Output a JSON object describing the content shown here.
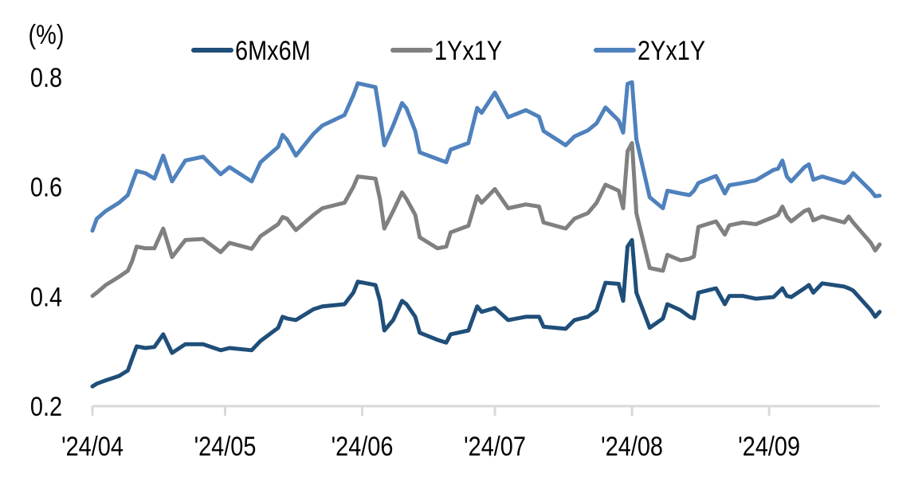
{
  "chart_data": {
    "type": "line",
    "unit_label": "(%)",
    "xlabel": "",
    "ylabel": "",
    "ylim": [
      0.2,
      0.8
    ],
    "yticks": [
      "0.2",
      "0.4",
      "0.6",
      "0.8"
    ],
    "xticks": [
      {
        "date": "2024-04-01",
        "label": "'24/04"
      },
      {
        "date": "2024-05-01",
        "label": "'24/05"
      },
      {
        "date": "2024-06-01",
        "label": "'24/06"
      },
      {
        "date": "2024-07-01",
        "label": "'24/07"
      },
      {
        "date": "2024-08-01",
        "label": "'24/08"
      },
      {
        "date": "2024-09-01",
        "label": "'24/09"
      }
    ],
    "grid": false,
    "legend_position": "top",
    "x": [
      "2024-04-01",
      "2024-04-02",
      "2024-04-04",
      "2024-04-07",
      "2024-04-09",
      "2024-04-10",
      "2024-04-11",
      "2024-04-13",
      "2024-04-15",
      "2024-04-17",
      "2024-04-19",
      "2024-04-22",
      "2024-04-26",
      "2024-04-30",
      "2024-05-02",
      "2024-05-07",
      "2024-05-09",
      "2024-05-13",
      "2024-05-14",
      "2024-05-15",
      "2024-05-17",
      "2024-05-21",
      "2024-05-23",
      "2024-05-28",
      "2024-05-30",
      "2024-05-31",
      "2024-06-04",
      "2024-06-05",
      "2024-06-06",
      "2024-06-08",
      "2024-06-10",
      "2024-06-11",
      "2024-06-13",
      "2024-06-14",
      "2024-06-18",
      "2024-06-20",
      "2024-06-21",
      "2024-06-25",
      "2024-06-27",
      "2024-06-28",
      "2024-07-01",
      "2024-07-04",
      "2024-07-08",
      "2024-07-11",
      "2024-07-12",
      "2024-07-17",
      "2024-07-19",
      "2024-07-22",
      "2024-07-24",
      "2024-07-26",
      "2024-07-29",
      "2024-07-30",
      "2024-07-31",
      "2024-08-01",
      "2024-08-02",
      "2024-08-05",
      "2024-08-08",
      "2024-08-09",
      "2024-08-12",
      "2024-08-14",
      "2024-08-15",
      "2024-08-16",
      "2024-08-20",
      "2024-08-22",
      "2024-08-23",
      "2024-08-26",
      "2024-08-29",
      "2024-09-02",
      "2024-09-03",
      "2024-09-04",
      "2024-09-05",
      "2024-09-06",
      "2024-09-09",
      "2024-09-10",
      "2024-09-11",
      "2024-09-13",
      "2024-09-18",
      "2024-09-19",
      "2024-09-20",
      "2024-09-24",
      "2024-09-25",
      "2024-09-26"
    ],
    "series": [
      {
        "name": "6Mx6M",
        "color": "#1f4e79",
        "values": [
          0.236,
          0.241,
          0.247,
          0.255,
          0.265,
          0.287,
          0.309,
          0.306,
          0.308,
          0.331,
          0.297,
          0.313,
          0.313,
          0.302,
          0.306,
          0.302,
          0.319,
          0.343,
          0.363,
          0.36,
          0.357,
          0.377,
          0.382,
          0.386,
          0.407,
          0.427,
          0.421,
          0.392,
          0.338,
          0.357,
          0.392,
          0.386,
          0.363,
          0.334,
          0.321,
          0.316,
          0.331,
          0.338,
          0.382,
          0.372,
          0.379,
          0.357,
          0.363,
          0.363,
          0.345,
          0.341,
          0.357,
          0.363,
          0.375,
          0.425,
          0.423,
          0.392,
          0.491,
          0.503,
          0.407,
          0.343,
          0.36,
          0.386,
          0.375,
          0.363,
          0.36,
          0.407,
          0.415,
          0.386,
          0.401,
          0.401,
          0.396,
          0.399,
          0.407,
          0.415,
          0.401,
          0.399,
          0.415,
          0.421,
          0.407,
          0.424,
          0.418,
          0.415,
          0.411,
          0.375,
          0.363,
          0.372
        ]
      },
      {
        "name": "1Yx1Y",
        "color": "#808080",
        "values": [
          0.401,
          0.407,
          0.421,
          0.436,
          0.447,
          0.465,
          0.491,
          0.488,
          0.488,
          0.524,
          0.472,
          0.503,
          0.505,
          0.481,
          0.498,
          0.487,
          0.51,
          0.532,
          0.545,
          0.542,
          0.521,
          0.549,
          0.561,
          0.571,
          0.6,
          0.619,
          0.615,
          0.578,
          0.524,
          0.556,
          0.59,
          0.578,
          0.549,
          0.508,
          0.488,
          0.491,
          0.517,
          0.529,
          0.583,
          0.571,
          0.596,
          0.561,
          0.568,
          0.564,
          0.535,
          0.524,
          0.542,
          0.552,
          0.571,
          0.604,
          0.593,
          0.561,
          0.665,
          0.68,
          0.552,
          0.452,
          0.447,
          0.476,
          0.466,
          0.469,
          0.473,
          0.527,
          0.537,
          0.513,
          0.53,
          0.535,
          0.532,
          0.545,
          0.549,
          0.564,
          0.546,
          0.537,
          0.556,
          0.559,
          0.539,
          0.546,
          0.535,
          0.546,
          0.535,
          0.498,
          0.484,
          0.495
        ]
      },
      {
        "name": "2Yx1Y",
        "color": "#4f81bd",
        "values": [
          0.52,
          0.542,
          0.556,
          0.571,
          0.585,
          0.607,
          0.629,
          0.625,
          0.615,
          0.657,
          0.61,
          0.648,
          0.655,
          0.623,
          0.636,
          0.61,
          0.645,
          0.673,
          0.695,
          0.686,
          0.657,
          0.697,
          0.712,
          0.731,
          0.767,
          0.789,
          0.782,
          0.731,
          0.676,
          0.712,
          0.753,
          0.743,
          0.702,
          0.663,
          0.651,
          0.645,
          0.668,
          0.68,
          0.744,
          0.735,
          0.772,
          0.727,
          0.74,
          0.728,
          0.702,
          0.676,
          0.692,
          0.703,
          0.716,
          0.745,
          0.721,
          0.699,
          0.788,
          0.791,
          0.687,
          0.581,
          0.561,
          0.593,
          0.588,
          0.585,
          0.593,
          0.607,
          0.62,
          0.588,
          0.603,
          0.607,
          0.612,
          0.631,
          0.633,
          0.648,
          0.619,
          0.61,
          0.636,
          0.641,
          0.613,
          0.619,
          0.607,
          0.613,
          0.625,
          0.593,
          0.583,
          0.584
        ]
      }
    ]
  }
}
